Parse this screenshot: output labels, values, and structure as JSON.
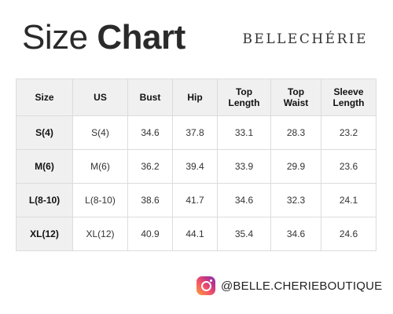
{
  "title": {
    "light": "Size ",
    "bold": "Chart"
  },
  "brand": "BELLECHÉRIE",
  "table": {
    "headers": [
      "Size",
      "US",
      "Bust",
      "Hip",
      "Top\nLength",
      "Top\nWaist",
      "Sleeve\nLength"
    ],
    "rows": [
      [
        "S(4)",
        "S(4)",
        "34.6",
        "37.8",
        "33.1",
        "28.3",
        "23.2"
      ],
      [
        "M(6)",
        "M(6)",
        "36.2",
        "39.4",
        "33.9",
        "29.9",
        "23.6"
      ],
      [
        "L(8-10)",
        "L(8-10)",
        "38.6",
        "41.7",
        "34.6",
        "32.3",
        "24.1"
      ],
      [
        "XL(12)",
        "XL(12)",
        "40.9",
        "44.1",
        "35.4",
        "34.6",
        "24.6"
      ]
    ]
  },
  "social": {
    "icon": "instagram-icon",
    "handle": "@BELLE.CHERIEBOUTIQUE"
  }
}
